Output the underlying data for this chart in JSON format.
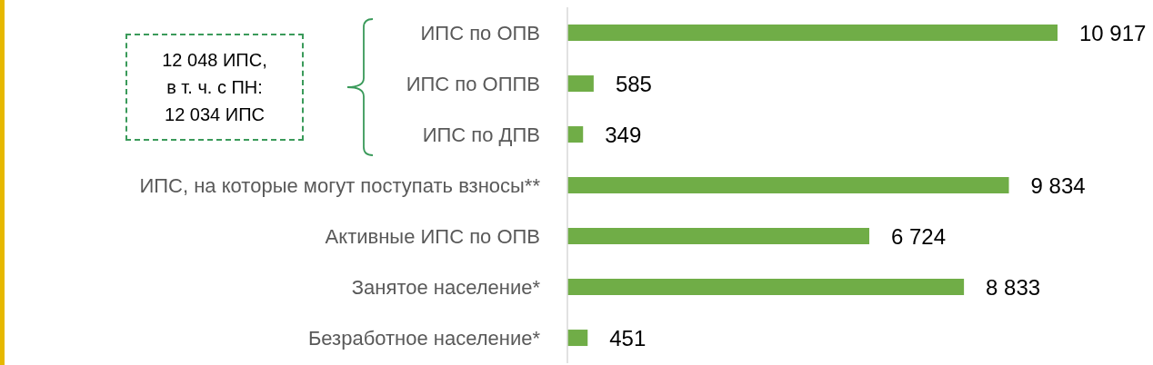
{
  "chart_data": {
    "type": "bar",
    "orientation": "horizontal",
    "categories": [
      "ИПС по ОПВ",
      "ИПС по ОППВ",
      "ИПС по ДПВ",
      "ИПС, на которые могут поступать взносы**",
      "Активные ИПС по ОПВ",
      "Занятое население*",
      "Безработное население*"
    ],
    "values": [
      10917,
      585,
      349,
      9834,
      6724,
      8833,
      451
    ],
    "value_labels": [
      "10 917",
      "585",
      "349",
      "9 834",
      "6 724",
      "8 833",
      "451"
    ],
    "color": "#70ad47",
    "annotations": [
      "12 048 ИПС,\nв т. ч. с ПН:\n12 034 ИПС"
    ]
  }
}
